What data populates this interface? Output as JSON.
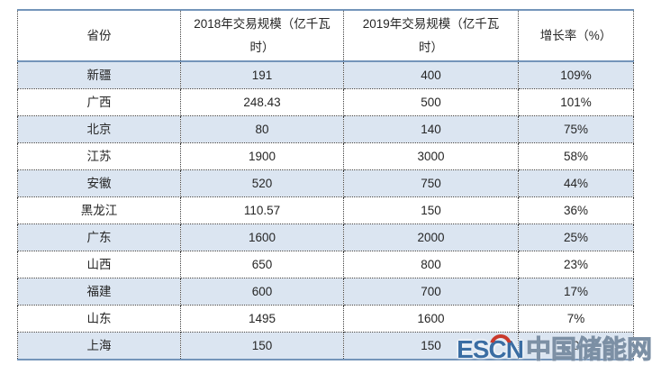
{
  "chart_data": {
    "type": "table",
    "title": "",
    "columns": [
      "省份",
      "2018年交易规模（亿千瓦时）",
      "2019年交易规模（亿千瓦时）",
      "增长率（%）"
    ],
    "rows": [
      [
        "新疆",
        191,
        400,
        "109%"
      ],
      [
        "广西",
        248.43,
        500,
        "101%"
      ],
      [
        "北京",
        80,
        140,
        "75%"
      ],
      [
        "江苏",
        1900,
        3000,
        "58%"
      ],
      [
        "安徽",
        520,
        750,
        "44%"
      ],
      [
        "黑龙江",
        110.57,
        150,
        "36%"
      ],
      [
        "广东",
        1600,
        2000,
        "25%"
      ],
      [
        "山西",
        650,
        800,
        "23%"
      ],
      [
        "福建",
        600,
        700,
        "17%"
      ],
      [
        "山东",
        1495,
        1600,
        "7%"
      ],
      [
        "上海",
        150,
        150,
        "0"
      ]
    ]
  },
  "ui": {
    "table": {
      "header_display": [
        "省份",
        "2018年交易规模（亿千瓦\n时）",
        "2019年交易规模（亿千瓦\n时）",
        "增长率（%）"
      ]
    }
  },
  "watermark": {
    "logo_prefix": "ES",
    "logo_c": "C",
    "logo_suffix": "N",
    "site_name": "中国储能网"
  },
  "colors": {
    "row_alt_bg": "#dbe5f1",
    "accent_rule": "#7495ba",
    "dotted_border": "#3f3f3f",
    "logo_blue": "#3a6da3",
    "logo_red": "#c9392c",
    "site_text": "#8396ab"
  }
}
